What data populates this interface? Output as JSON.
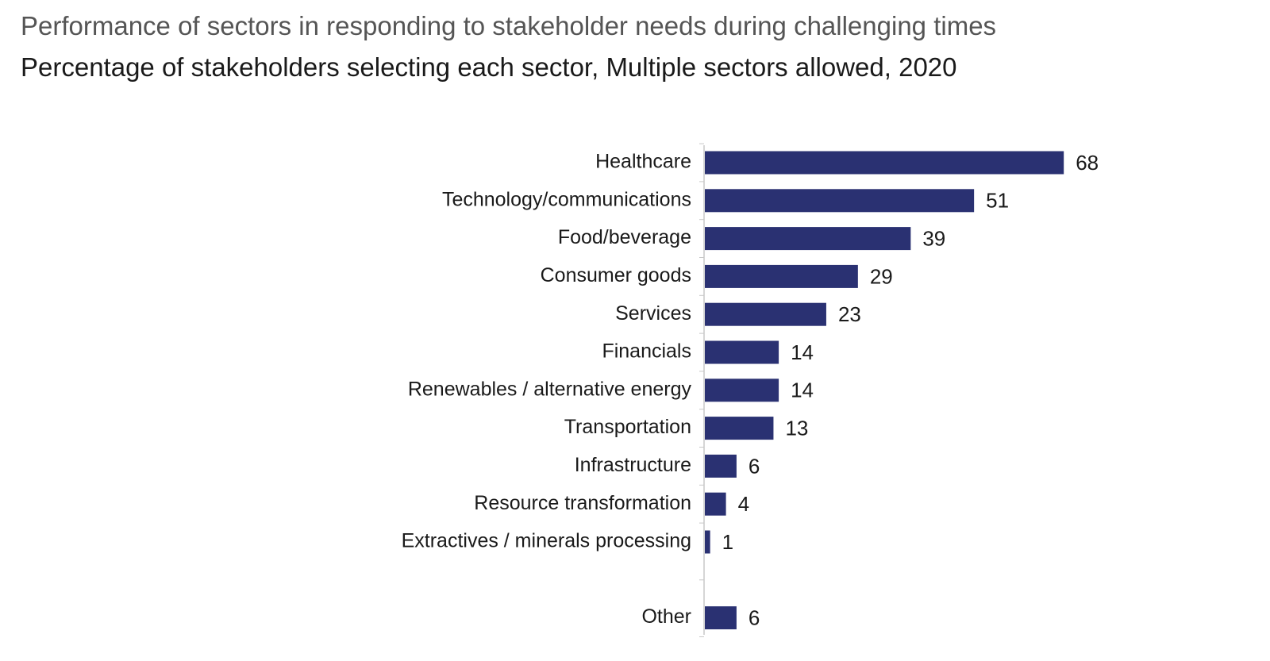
{
  "header": {
    "title": "Performance of sectors in responding to stakeholder needs during challenging times",
    "subtitle": "Percentage of stakeholders selecting each sector, Multiple sectors allowed, 2020"
  },
  "colors": {
    "bar": "#2a3172",
    "axis": "#c8c8c8",
    "label": "#1a1a1a"
  },
  "chart_data": {
    "type": "bar",
    "orientation": "horizontal",
    "categories": [
      "Healthcare",
      "Technology/communications",
      "Food/beverage",
      "Consumer goods",
      "Services",
      "Financials",
      "Renewables / alternative energy",
      "Transportation",
      "Infrastructure",
      "Resource transformation",
      "Extractives / minerals processing",
      "Other"
    ],
    "values": [
      68,
      51,
      39,
      29,
      23,
      14,
      14,
      13,
      6,
      4,
      1,
      6
    ],
    "data_labels": [
      "68",
      "51",
      "39",
      "29",
      "23",
      "14",
      "14",
      "13",
      "6",
      "4",
      "1",
      "6"
    ],
    "xlim": [
      0,
      100
    ],
    "grid": false,
    "legend": "none",
    "gap_before_last_category": true
  }
}
